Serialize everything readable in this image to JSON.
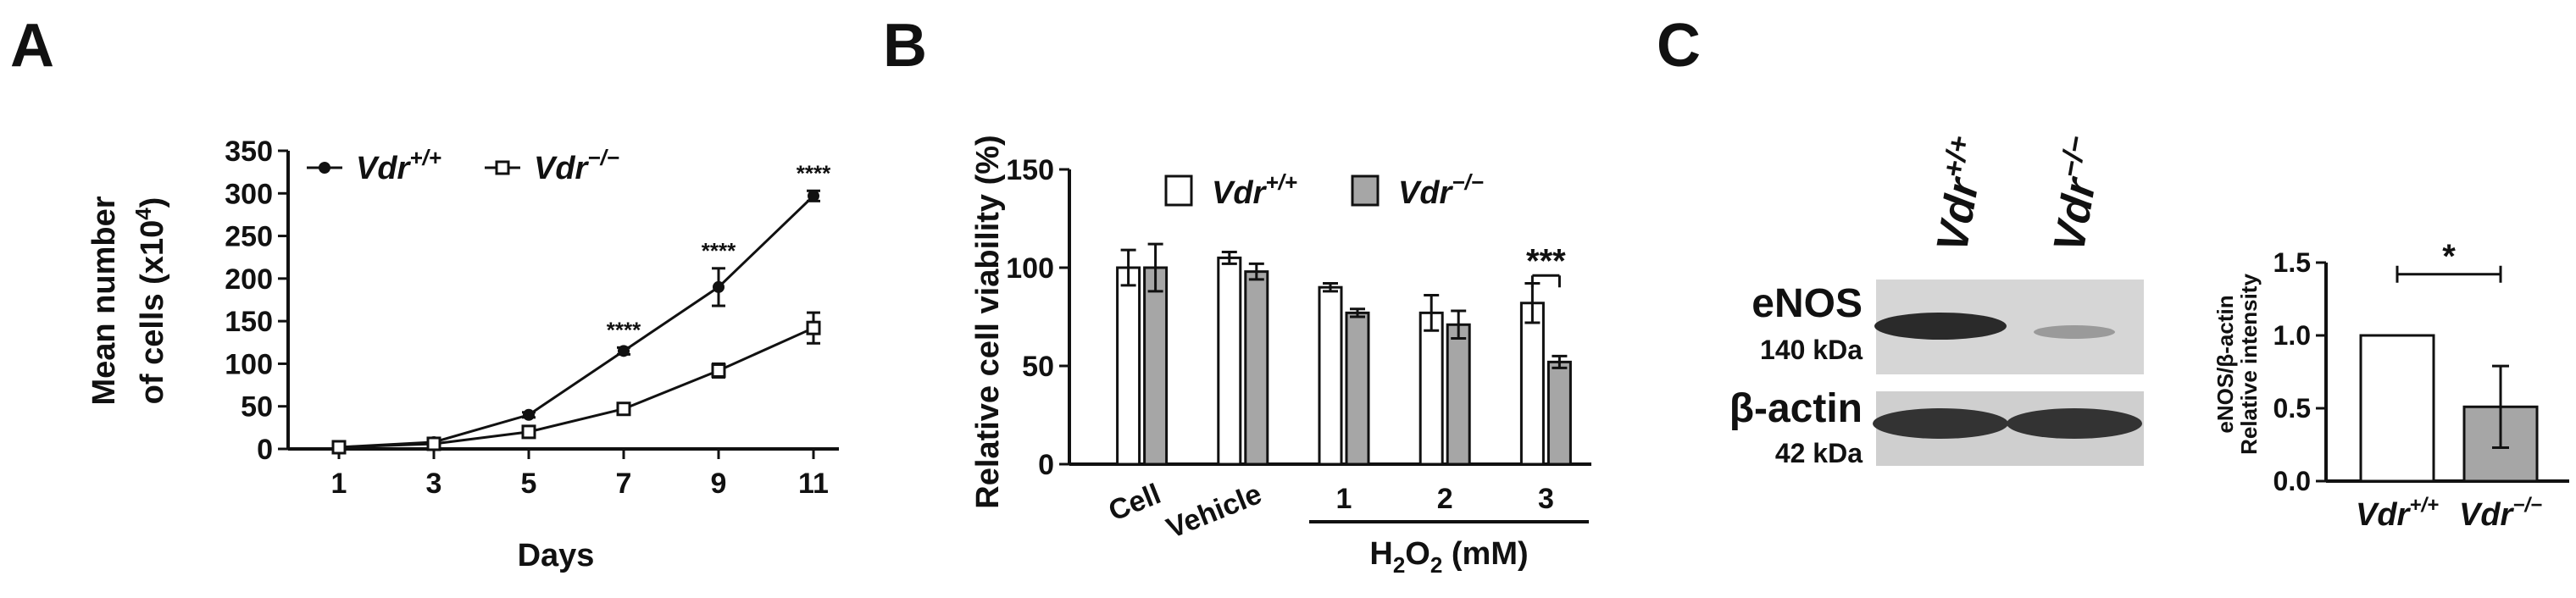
{
  "colors": {
    "ko_fill": "#a6a6a6",
    "wt_fill": "#ffffff",
    "ink": "#111111",
    "blot_bg": "#cfcfcf"
  },
  "panels": {
    "A": {
      "letter": "A",
      "ylabel_line1": "Mean number",
      "ylabel_line2": "of cells (x10",
      "ylabel_sup": "4",
      "ylabel_close": ")",
      "xlabel": "Days",
      "legend": [
        {
          "base": "Vdr",
          "sup": "+/+",
          "marker": "filled-circle"
        },
        {
          "base": "Vdr",
          "sup": "−/−",
          "marker": "open-square"
        }
      ]
    },
    "B": {
      "letter": "B",
      "ylabel": "Relative cell viability (%)",
      "group_label_base": "H",
      "group_label_sub": "2",
      "group_label_base2": "O",
      "group_label_sub2": "2",
      "group_label_rest": " (mM)",
      "legend": [
        {
          "base": "Vdr",
          "sup": "+/+",
          "fill": "white"
        },
        {
          "base": "Vdr",
          "sup": "−/−",
          "fill": "gray"
        }
      ]
    },
    "C": {
      "letter": "C",
      "blot_cols": [
        {
          "base": "Vdr",
          "sup": "+/+"
        },
        {
          "base": "Vdr",
          "sup": "−/−"
        }
      ],
      "blot_rows": [
        {
          "name": "eNOS",
          "kda": "140 kDa"
        },
        {
          "name": "β-actin",
          "kda": "42 kDa"
        }
      ],
      "ylabel_line1": "eNOS/β-actin",
      "ylabel_line2": "Relative intensity"
    }
  },
  "chart_data": [
    {
      "type": "line",
      "panel": "A",
      "x": [
        1,
        3,
        5,
        7,
        9,
        11
      ],
      "xlabel": "Days",
      "ylabel": "Mean number of cells (x10^4)",
      "ylim": [
        0,
        350
      ],
      "yticks": [
        0,
        50,
        100,
        150,
        200,
        250,
        300,
        350
      ],
      "series": [
        {
          "name": "Vdr+/+",
          "values": [
            2,
            8,
            40,
            115,
            190,
            297
          ],
          "errors": [
            1,
            2,
            3,
            4,
            22,
            6
          ]
        },
        {
          "name": "Vdr−/−",
          "values": [
            2,
            6,
            20,
            47,
            92,
            142
          ],
          "errors": [
            1,
            2,
            3,
            5,
            8,
            18
          ]
        }
      ],
      "annotations": [
        {
          "x": 7,
          "text": "****"
        },
        {
          "x": 9,
          "text": "****"
        },
        {
          "x": 11,
          "text": "****"
        }
      ]
    },
    {
      "type": "bar",
      "panel": "B",
      "categories": [
        "Cell",
        "Vehicle",
        "1",
        "2",
        "3"
      ],
      "ylabel": "Relative cell viability (%)",
      "ylim": [
        0,
        150
      ],
      "yticks": [
        0,
        50,
        100,
        150
      ],
      "series": [
        {
          "name": "Vdr+/+",
          "values": [
            100,
            105,
            90,
            77,
            82
          ],
          "errors": [
            9,
            3,
            2,
            9,
            10
          ]
        },
        {
          "name": "Vdr−/−",
          "values": [
            100,
            98,
            77,
            71,
            52
          ],
          "errors": [
            12,
            4,
            2,
            7,
            3
          ]
        }
      ],
      "annotations": [
        {
          "category": "3",
          "text": "***"
        }
      ]
    },
    {
      "type": "bar",
      "panel": "C",
      "categories": [
        "Vdr+/+",
        "Vdr−/−"
      ],
      "ylabel": "eNOS/β-actin Relative intensity",
      "ylim": [
        0,
        1.5
      ],
      "yticks": [
        "0.0",
        "0.5",
        "1.0",
        "1.5"
      ],
      "values": [
        1.0,
        0.51
      ],
      "errors": [
        0,
        0.28
      ],
      "annotations": [
        {
          "text": "*"
        }
      ]
    }
  ]
}
